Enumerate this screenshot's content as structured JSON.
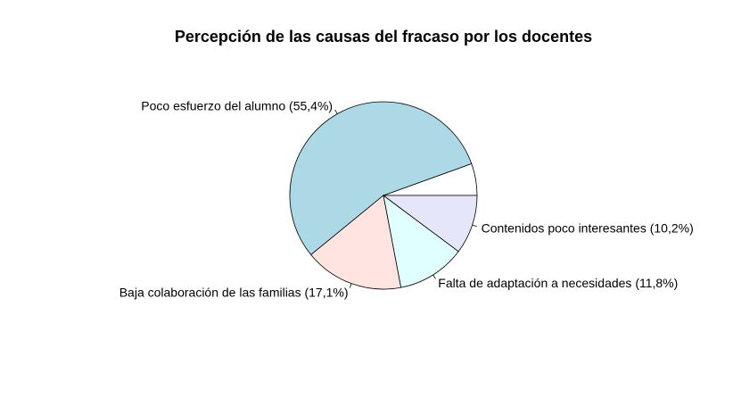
{
  "chart_data": {
    "type": "pie",
    "title": "Percepción de las causas del fracaso por los docentes",
    "start_angle_deg": 0,
    "direction": "counterclockwise",
    "slices": [
      {
        "label": "",
        "value": 5.5,
        "color": "#ffffff"
      },
      {
        "label": "Poco esfuerzo del alumno (55,4%)",
        "value": 55.4,
        "color": "#add8e6"
      },
      {
        "label": "Baja colaboración de las familias (17,1%)",
        "value": 17.1,
        "color": "#ffe4e1"
      },
      {
        "label": "Falta de adaptación a necesidades (11,8%)",
        "value": 11.8,
        "color": "#e0ffff"
      },
      {
        "label": "Contenidos poco interesantes (10,2%)",
        "value": 10.2,
        "color": "#e6e6fa"
      }
    ]
  }
}
